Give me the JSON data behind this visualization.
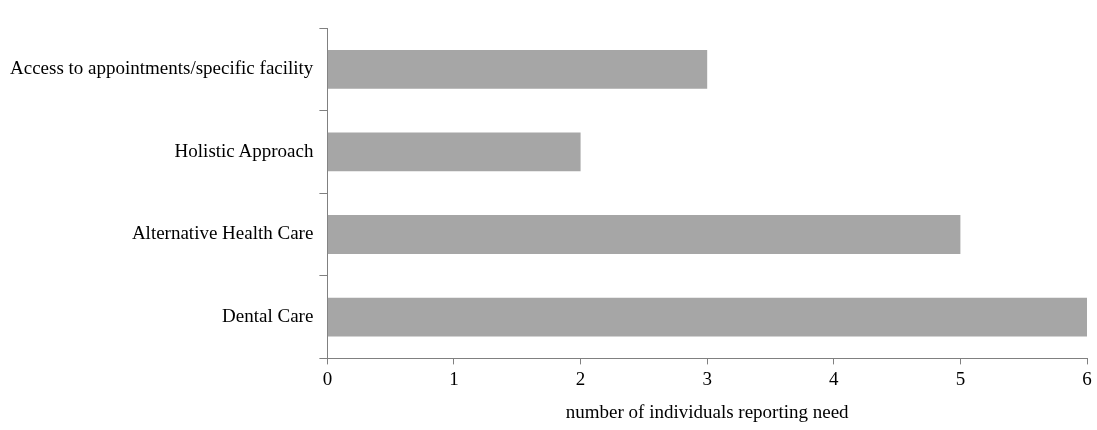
{
  "chart_data": {
    "type": "bar",
    "orientation": "horizontal",
    "xlabel": "number of individuals reporting need",
    "categories": [
      "Access to appointments/specific facility",
      "Holistic Approach",
      "Alternative Health Care",
      "Dental Care"
    ],
    "values": [
      3,
      2,
      5,
      6
    ],
    "color": "#a6a6a6",
    "xlim": [
      0,
      6
    ],
    "xticks": [
      0,
      1,
      2,
      3,
      4,
      5,
      6
    ],
    "grid": false,
    "legend": false
  }
}
